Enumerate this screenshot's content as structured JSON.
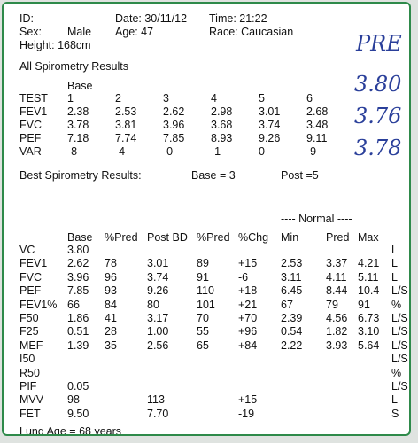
{
  "header": {
    "id_label": "ID:",
    "date": "Date: 30/11/12",
    "time": "Time: 21:22",
    "sex_label": "Sex:",
    "sex_value": "Male",
    "age": "Age: 47",
    "race": "Race: Caucasian",
    "height": "Height:  168cm"
  },
  "all_results": {
    "title": "All Spirometry Results",
    "base_label": "Base",
    "rows": [
      [
        "TEST",
        "1",
        "2",
        "3",
        "4",
        "5",
        "6"
      ],
      [
        "FEV1",
        "2.38",
        "2.53",
        "2.62",
        "2.98",
        "3.01",
        "2.68"
      ],
      [
        "FVC",
        "3.78",
        "3.81",
        "3.96",
        "3.68",
        "3.74",
        "3.48"
      ],
      [
        "PEF",
        "7.18",
        "7.74",
        "7.85",
        "8.93",
        "9.26",
        "9.11"
      ],
      [
        "VAR",
        "-8",
        "-4",
        "-0",
        "-1",
        "0",
        "-9"
      ]
    ]
  },
  "best": {
    "label": "Best Spirometry Results:",
    "base": "Base = 3",
    "post": "Post =5"
  },
  "handwriting": [
    "PRE",
    "3.80",
    "3.76",
    "3.78"
  ],
  "summary": {
    "normal_label": "----  Normal  ----",
    "headers": [
      "",
      "Base",
      "%Pred",
      "Post BD",
      "%Pred",
      "%Chg",
      "Min",
      "Pred",
      "Max",
      ""
    ],
    "rows": [
      [
        "VC",
        "3.80",
        "",
        "",
        "",
        "",
        "",
        "",
        "",
        "L"
      ],
      [
        "FEV1",
        "2.62",
        "78",
        "3.01",
        "89",
        "+15",
        "2.53",
        "3.37",
        "4.21",
        "L"
      ],
      [
        "FVC",
        "3.96",
        "96",
        "3.74",
        "91",
        "-6",
        "3.11",
        "4.11",
        "5.11",
        "L"
      ],
      [
        "PEF",
        "7.85",
        "93",
        "9.26",
        "110",
        "+18",
        "6.45",
        "8.44",
        "10.4",
        "L/S"
      ],
      [
        "FEV1%",
        "66",
        "84",
        "80",
        "101",
        "+21",
        "67",
        "79",
        "91",
        "%"
      ],
      [
        "F50",
        "1.86",
        "41",
        "3.17",
        "70",
        "+70",
        "2.39",
        "4.56",
        "6.73",
        "L/S"
      ],
      [
        "F25",
        "0.51",
        "28",
        "1.00",
        "55",
        "+96",
        "0.54",
        "1.82",
        "3.10",
        "L/S"
      ],
      [
        "MEF",
        "1.39",
        "35",
        "2.56",
        "65",
        "+84",
        "2.22",
        "3.93",
        "5.64",
        "L/S"
      ],
      [
        "I50",
        "",
        "",
        "",
        "",
        "",
        "",
        "",
        "",
        "L/S"
      ],
      [
        "R50",
        "",
        "",
        "",
        "",
        "",
        "",
        "",
        "",
        "%"
      ],
      [
        "PIF",
        "0.05",
        "",
        "",
        "",
        "",
        "",
        "",
        "",
        "L/S"
      ],
      [
        "MVV",
        "98",
        "",
        "113",
        "",
        "+15",
        "",
        "",
        "",
        "L"
      ],
      [
        "FET",
        "9.50",
        "",
        "7.70",
        "",
        "-19",
        "",
        "",
        "",
        "S"
      ]
    ]
  },
  "lung_age": "Lung Age = 68 years"
}
